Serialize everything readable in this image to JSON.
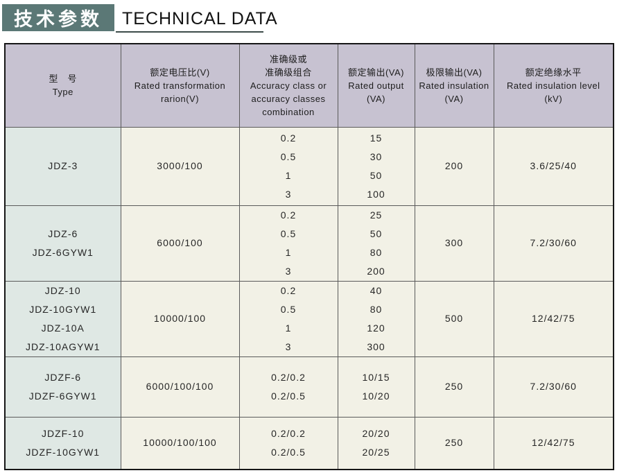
{
  "title": {
    "zh": "技术参数",
    "en": "TECHNICAL DATA"
  },
  "colors": {
    "title_bg": "#5b7876",
    "underline": "#3c4b49",
    "header_bg": "#c7c2d1",
    "type_col_bg": "#dfe8e4",
    "cell_bg": "#f2f1e6",
    "grid_line": "#5a5a5a",
    "outer_border": "#161616"
  },
  "table": {
    "columns": [
      {
        "id": "type",
        "lines": [
          "型　号",
          "Type"
        ]
      },
      {
        "id": "rated-voltage-ratio",
        "lines": [
          "额定电压比(V)",
          "Rated transformation",
          "rarion(V)"
        ]
      },
      {
        "id": "accuracy-class",
        "lines": [
          "准确级或",
          "准确级组合",
          "Accuracy class or",
          "accuracy classes",
          "combination"
        ]
      },
      {
        "id": "rated-output",
        "lines": [
          "额定输出(VA)",
          "Rated output",
          "(VA)"
        ]
      },
      {
        "id": "limit-output",
        "lines": [
          "极限输出(VA)",
          "Rated insulation",
          "(VA)"
        ]
      },
      {
        "id": "rated-insulation-level",
        "lines": [
          "额定绝缘水平",
          "Rated insulation level",
          "(kV)"
        ]
      }
    ],
    "rows": [
      {
        "cells": [
          [
            "JDZ-3"
          ],
          [
            "3000/100"
          ],
          [
            "0.2",
            "0.5",
            "1",
            "3"
          ],
          [
            "15",
            "30",
            "50",
            "100"
          ],
          [
            "200"
          ],
          [
            "3.6/25/40"
          ]
        ]
      },
      {
        "cells": [
          [
            "JDZ-6",
            "JDZ-6GYW1"
          ],
          [
            "6000/100"
          ],
          [
            "0.2",
            "0.5",
            "1",
            "3"
          ],
          [
            "25",
            "50",
            "80",
            "200"
          ],
          [
            "300"
          ],
          [
            "7.2/30/60"
          ]
        ]
      },
      {
        "cells": [
          [
            "JDZ-10",
            "JDZ-10GYW1",
            "JDZ-10A",
            "JDZ-10AGYW1"
          ],
          [
            "10000/100"
          ],
          [
            "0.2",
            "0.5",
            "1",
            "3"
          ],
          [
            "40",
            "80",
            "120",
            "300"
          ],
          [
            "500"
          ],
          [
            "12/42/75"
          ]
        ]
      },
      {
        "cells": [
          [
            "JDZF-6",
            "JDZF-6GYW1"
          ],
          [
            "6000/100/100"
          ],
          [
            "0.2/0.2",
            "0.2/0.5"
          ],
          [
            "10/15",
            "10/20"
          ],
          [
            "250"
          ],
          [
            "7.2/30/60"
          ]
        ]
      },
      {
        "cells": [
          [
            "JDZF-10",
            "JDZF-10GYW1"
          ],
          [
            "10000/100/100"
          ],
          [
            "0.2/0.2",
            "0.2/0.5"
          ],
          [
            "20/20",
            "20/25"
          ],
          [
            "250"
          ],
          [
            "12/42/75"
          ]
        ]
      }
    ]
  }
}
